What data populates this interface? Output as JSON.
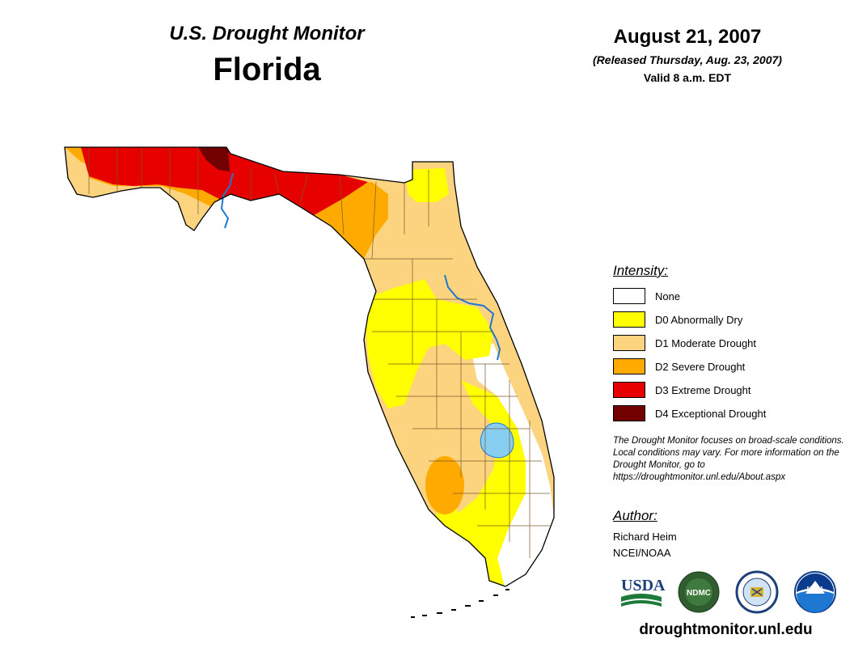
{
  "header": {
    "subtitle": "U.S. Drought Monitor",
    "title": "Florida",
    "date": "August 21, 2007",
    "released": "(Released Thursday, Aug. 23, 2007)",
    "valid": "Valid 8 a.m. EDT"
  },
  "legend": {
    "title": "Intensity:",
    "items": [
      {
        "label": "None",
        "color": "#ffffff"
      },
      {
        "label": "D0 Abnormally Dry",
        "color": "#ffff00"
      },
      {
        "label": "D1 Moderate Drought",
        "color": "#fcd37f"
      },
      {
        "label": "D2 Severe Drought",
        "color": "#ffaa00"
      },
      {
        "label": "D3 Extreme Drought",
        "color": "#e60000"
      },
      {
        "label": "D4 Exceptional Drought",
        "color": "#730000"
      }
    ]
  },
  "disclaimer": "The Drought Monitor focuses on broad-scale conditions. Local conditions may vary. For more information on the Drought Monitor, go to https://droughtmonitor.unl.edu/About.aspx",
  "author": {
    "title": "Author:",
    "name": "Richard Heim",
    "org": "NCEI/NOAA"
  },
  "logos": {
    "usda": "USDA",
    "ndmc": "NDMC",
    "noaa": "NOAA"
  },
  "url": "droughtmonitor.unl.edu",
  "map": {
    "water_color": "#87cef0",
    "river_color": "#1e78d2"
  }
}
